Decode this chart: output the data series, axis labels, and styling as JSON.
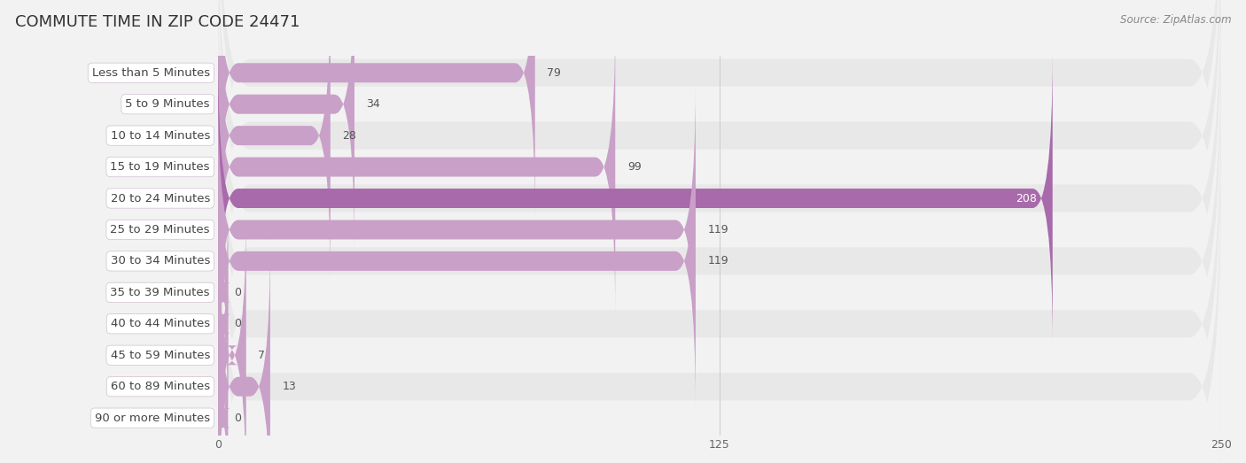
{
  "title": "COMMUTE TIME IN ZIP CODE 24471",
  "source_text": "Source: ZipAtlas.com",
  "categories": [
    "Less than 5 Minutes",
    "5 to 9 Minutes",
    "10 to 14 Minutes",
    "15 to 19 Minutes",
    "20 to 24 Minutes",
    "25 to 29 Minutes",
    "30 to 34 Minutes",
    "35 to 39 Minutes",
    "40 to 44 Minutes",
    "45 to 59 Minutes",
    "60 to 89 Minutes",
    "90 or more Minutes"
  ],
  "values": [
    79,
    34,
    28,
    99,
    208,
    119,
    119,
    0,
    0,
    7,
    13,
    0
  ],
  "xlim": [
    0,
    250
  ],
  "xticks": [
    0,
    125,
    250
  ],
  "bar_color_normal": "#c9a0c8",
  "bar_color_highlight": "#a86aab",
  "highlight_index": 4,
  "background_color": "#f2f2f2",
  "row_even_color": "#e8e8e8",
  "row_odd_color": "#f2f2f2",
  "label_box_color": "#ffffff",
  "label_box_border": "#d8c8d8",
  "title_fontsize": 13,
  "label_fontsize": 9.5,
  "value_fontsize": 9,
  "tick_fontsize": 9,
  "source_fontsize": 8.5
}
